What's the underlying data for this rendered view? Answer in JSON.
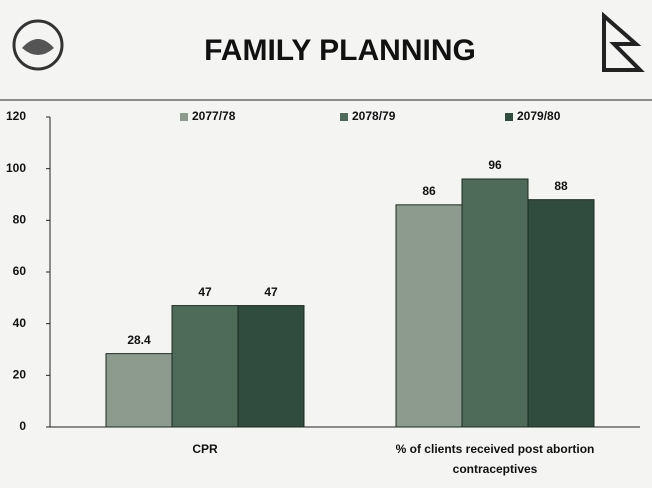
{
  "chart_data": {
    "type": "bar",
    "title": "FAMILY PLANNING",
    "categories": [
      "CPR",
      "% of clients received post abortion contraceptives"
    ],
    "series": [
      {
        "name": "2077/78",
        "color": "#8c9b8e",
        "values": [
          28.4,
          86
        ]
      },
      {
        "name": "2078/79",
        "color": "#4d6b58",
        "values": [
          47,
          96
        ]
      },
      {
        "name": "2079/80",
        "color": "#304c3e",
        "values": [
          47,
          88
        ]
      }
    ],
    "ylim": [
      0,
      120
    ],
    "yticks": [
      0,
      20,
      40,
      60,
      80,
      100,
      120
    ],
    "legend": "top"
  }
}
